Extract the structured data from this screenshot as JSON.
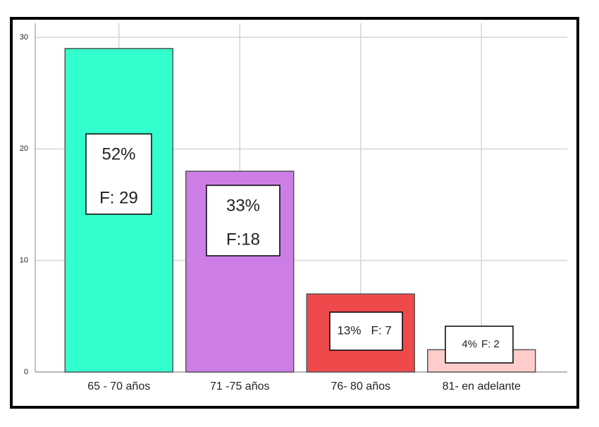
{
  "chart_data": {
    "type": "bar",
    "categories": [
      "65 - 70 años",
      "71 -75 años",
      "76- 80 años",
      "81- en adelante"
    ],
    "values": [
      29,
      18,
      7,
      2
    ],
    "value_labels": [
      "F: 29",
      "F:18",
      "F: 7",
      "F: 2"
    ],
    "shares": [
      52,
      33,
      13,
      4
    ],
    "share_labels": [
      "52%",
      "33%",
      "13%",
      "4%"
    ],
    "colors": [
      "#33ffcc",
      "#cc7ee6",
      "#ee4a4c",
      "#ffcccc"
    ],
    "ylim": [
      0,
      30
    ],
    "yticks": [
      0,
      10,
      20,
      30
    ],
    "grid": true
  }
}
